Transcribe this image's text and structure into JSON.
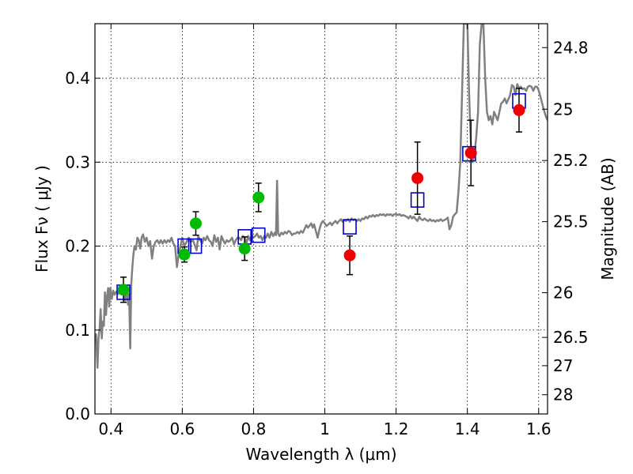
{
  "chart_data": {
    "type": "scatter",
    "xlabel": "Wavelength  λ (μm)",
    "ylabel": "Flux  Fν  ( μJy )",
    "y2label": "Magnitude (AB)",
    "xlim": [
      0.355,
      1.625
    ],
    "ylim": [
      0.0,
      0.465
    ],
    "grid": true,
    "x_ticks": [
      0.4,
      0.6,
      0.8,
      1.0,
      1.2,
      1.4,
      1.6
    ],
    "x_tick_labels": [
      "0.4",
      "0.6",
      "0.8",
      "1",
      "1.2",
      "1.4",
      "1.6"
    ],
    "y_ticks": [
      0.0,
      0.1,
      0.2,
      0.3,
      0.4
    ],
    "y_tick_labels": [
      "0.0",
      "0.1",
      "0.2",
      "0.3",
      "0.4"
    ],
    "y2_ticks": [
      {
        "label": "24.8",
        "flux": 0.4365
      },
      {
        "label": "25",
        "flux": 0.3631
      },
      {
        "label": "25.2",
        "flux": 0.302
      },
      {
        "label": "25.5",
        "flux": 0.2291
      },
      {
        "label": "26",
        "flux": 0.1445
      },
      {
        "label": "26.5",
        "flux": 0.0912
      },
      {
        "label": "27",
        "flux": 0.0575
      },
      {
        "label": "28",
        "flux": 0.0229
      }
    ],
    "colors": {
      "template": "#808080",
      "model": "#0000cc",
      "green": "#00bb00",
      "red": "#ee0000",
      "errorbar": "#000000"
    },
    "template_spectrum": [
      [
        0.355,
        0.09
      ],
      [
        0.358,
        0.095
      ],
      [
        0.362,
        0.055
      ],
      [
        0.365,
        0.09
      ],
      [
        0.368,
        0.102
      ],
      [
        0.371,
        0.125
      ],
      [
        0.374,
        0.09
      ],
      [
        0.377,
        0.11
      ],
      [
        0.38,
        0.105
      ],
      [
        0.383,
        0.145
      ],
      [
        0.386,
        0.118
      ],
      [
        0.389,
        0.14
      ],
      [
        0.392,
        0.15
      ],
      [
        0.395,
        0.128
      ],
      [
        0.398,
        0.15
      ],
      [
        0.402,
        0.137
      ],
      [
        0.406,
        0.147
      ],
      [
        0.41,
        0.142
      ],
      [
        0.415,
        0.146
      ],
      [
        0.42,
        0.143
      ],
      [
        0.425,
        0.148
      ],
      [
        0.43,
        0.145
      ],
      [
        0.435,
        0.148
      ],
      [
        0.44,
        0.135
      ],
      [
        0.444,
        0.15
      ],
      [
        0.448,
        0.13
      ],
      [
        0.451,
        0.143
      ],
      [
        0.454,
        0.078
      ],
      [
        0.457,
        0.155
      ],
      [
        0.46,
        0.175
      ],
      [
        0.463,
        0.19
      ],
      [
        0.466,
        0.2
      ],
      [
        0.47,
        0.196
      ],
      [
        0.474,
        0.21
      ],
      [
        0.478,
        0.207
      ],
      [
        0.482,
        0.197
      ],
      [
        0.486,
        0.21
      ],
      [
        0.49,
        0.214
      ],
      [
        0.495,
        0.205
      ],
      [
        0.5,
        0.21
      ],
      [
        0.505,
        0.2
      ],
      [
        0.51,
        0.206
      ],
      [
        0.515,
        0.185
      ],
      [
        0.52,
        0.2
      ],
      [
        0.525,
        0.205
      ],
      [
        0.53,
        0.207
      ],
      [
        0.535,
        0.203
      ],
      [
        0.54,
        0.207
      ],
      [
        0.545,
        0.203
      ],
      [
        0.55,
        0.207
      ],
      [
        0.555,
        0.204
      ],
      [
        0.56,
        0.207
      ],
      [
        0.565,
        0.205
      ],
      [
        0.57,
        0.21
      ],
      [
        0.575,
        0.203
      ],
      [
        0.58,
        0.2
      ],
      [
        0.585,
        0.175
      ],
      [
        0.59,
        0.19
      ],
      [
        0.595,
        0.2
      ],
      [
        0.6,
        0.21
      ],
      [
        0.606,
        0.2
      ],
      [
        0.612,
        0.205
      ],
      [
        0.618,
        0.21
      ],
      [
        0.624,
        0.205
      ],
      [
        0.63,
        0.207
      ],
      [
        0.636,
        0.2
      ],
      [
        0.64,
        0.195
      ],
      [
        0.645,
        0.212
      ],
      [
        0.65,
        0.207
      ],
      [
        0.656,
        0.203
      ],
      [
        0.66,
        0.21
      ],
      [
        0.665,
        0.207
      ],
      [
        0.67,
        0.212
      ],
      [
        0.675,
        0.207
      ],
      [
        0.68,
        0.205
      ],
      [
        0.685,
        0.2
      ],
      [
        0.69,
        0.213
      ],
      [
        0.695,
        0.205
      ],
      [
        0.7,
        0.21
      ],
      [
        0.705,
        0.196
      ],
      [
        0.71,
        0.212
      ],
      [
        0.715,
        0.207
      ],
      [
        0.72,
        0.203
      ],
      [
        0.725,
        0.207
      ],
      [
        0.73,
        0.205
      ],
      [
        0.735,
        0.207
      ],
      [
        0.74,
        0.21
      ],
      [
        0.745,
        0.202
      ],
      [
        0.75,
        0.207
      ],
      [
        0.755,
        0.21
      ],
      [
        0.76,
        0.21
      ],
      [
        0.765,
        0.207
      ],
      [
        0.77,
        0.212
      ],
      [
        0.775,
        0.21
      ],
      [
        0.78,
        0.203
      ],
      [
        0.785,
        0.212
      ],
      [
        0.79,
        0.207
      ],
      [
        0.795,
        0.213
      ],
      [
        0.8,
        0.21
      ],
      [
        0.805,
        0.212
      ],
      [
        0.81,
        0.215
      ],
      [
        0.815,
        0.21
      ],
      [
        0.82,
        0.212
      ],
      [
        0.825,
        0.207
      ],
      [
        0.83,
        0.212
      ],
      [
        0.835,
        0.21
      ],
      [
        0.84,
        0.215
      ],
      [
        0.845,
        0.21
      ],
      [
        0.85,
        0.217
      ],
      [
        0.855,
        0.212
      ],
      [
        0.86,
        0.216
      ],
      [
        0.863,
        0.213
      ],
      [
        0.866,
        0.278
      ],
      [
        0.869,
        0.215
      ],
      [
        0.873,
        0.212
      ],
      [
        0.878,
        0.216
      ],
      [
        0.883,
        0.214
      ],
      [
        0.888,
        0.217
      ],
      [
        0.893,
        0.215
      ],
      [
        0.898,
        0.218
      ],
      [
        0.903,
        0.217
      ],
      [
        0.908,
        0.213
      ],
      [
        0.913,
        0.215
      ],
      [
        0.918,
        0.215
      ],
      [
        0.923,
        0.217
      ],
      [
        0.928,
        0.215
      ],
      [
        0.933,
        0.218
      ],
      [
        0.938,
        0.216
      ],
      [
        0.943,
        0.22
      ],
      [
        0.948,
        0.225
      ],
      [
        0.953,
        0.222
      ],
      [
        0.958,
        0.225
      ],
      [
        0.962,
        0.227
      ],
      [
        0.966,
        0.222
      ],
      [
        0.97,
        0.226
      ],
      [
        0.975,
        0.218
      ],
      [
        0.98,
        0.21
      ],
      [
        0.985,
        0.22
      ],
      [
        0.99,
        0.227
      ],
      [
        0.995,
        0.23
      ],
      [
        1.0,
        0.227
      ],
      [
        1.005,
        0.224
      ],
      [
        1.01,
        0.226
      ],
      [
        1.015,
        0.228
      ],
      [
        1.02,
        0.225
      ],
      [
        1.025,
        0.228
      ],
      [
        1.03,
        0.23
      ],
      [
        1.035,
        0.227
      ],
      [
        1.04,
        0.23
      ],
      [
        1.045,
        0.232
      ],
      [
        1.05,
        0.229
      ],
      [
        1.055,
        0.231
      ],
      [
        1.06,
        0.23
      ],
      [
        1.065,
        0.232
      ],
      [
        1.07,
        0.229
      ],
      [
        1.075,
        0.233
      ],
      [
        1.08,
        0.231
      ],
      [
        1.085,
        0.232
      ],
      [
        1.09,
        0.23
      ],
      [
        1.095,
        0.232
      ],
      [
        1.1,
        0.23
      ],
      [
        1.105,
        0.233
      ],
      [
        1.11,
        0.232
      ],
      [
        1.115,
        0.235
      ],
      [
        1.12,
        0.233
      ],
      [
        1.125,
        0.236
      ],
      [
        1.13,
        0.235
      ],
      [
        1.135,
        0.237
      ],
      [
        1.14,
        0.235
      ],
      [
        1.145,
        0.237
      ],
      [
        1.15,
        0.236
      ],
      [
        1.155,
        0.238
      ],
      [
        1.16,
        0.237
      ],
      [
        1.165,
        0.238
      ],
      [
        1.17,
        0.236
      ],
      [
        1.175,
        0.238
      ],
      [
        1.18,
        0.237
      ],
      [
        1.185,
        0.238
      ],
      [
        1.19,
        0.236
      ],
      [
        1.195,
        0.238
      ],
      [
        1.2,
        0.238
      ],
      [
        1.205,
        0.237
      ],
      [
        1.21,
        0.238
      ],
      [
        1.215,
        0.236
      ],
      [
        1.22,
        0.237
      ],
      [
        1.225,
        0.236
      ],
      [
        1.23,
        0.235
      ],
      [
        1.235,
        0.233
      ],
      [
        1.24,
        0.236
      ],
      [
        1.245,
        0.233
      ],
      [
        1.25,
        0.235
      ],
      [
        1.255,
        0.232
      ],
      [
        1.26,
        0.23
      ],
      [
        1.265,
        0.235
      ],
      [
        1.27,
        0.232
      ],
      [
        1.275,
        0.231
      ],
      [
        1.28,
        0.233
      ],
      [
        1.285,
        0.231
      ],
      [
        1.29,
        0.23
      ],
      [
        1.295,
        0.232
      ],
      [
        1.3,
        0.23
      ],
      [
        1.305,
        0.231
      ],
      [
        1.31,
        0.229
      ],
      [
        1.315,
        0.231
      ],
      [
        1.32,
        0.23
      ],
      [
        1.325,
        0.232
      ],
      [
        1.33,
        0.23
      ],
      [
        1.335,
        0.231
      ],
      [
        1.34,
        0.232
      ],
      [
        1.345,
        0.234
      ],
      [
        1.35,
        0.22
      ],
      [
        1.355,
        0.225
      ],
      [
        1.36,
        0.235
      ],
      [
        1.365,
        0.238
      ],
      [
        1.37,
        0.24
      ],
      [
        1.375,
        0.265
      ],
      [
        1.38,
        0.3
      ],
      [
        1.385,
        0.38
      ],
      [
        1.39,
        0.465
      ],
      [
        1.395,
        0.465
      ],
      [
        1.4,
        0.465
      ],
      [
        1.405,
        0.38
      ],
      [
        1.41,
        0.32
      ],
      [
        1.415,
        0.3
      ],
      [
        1.42,
        0.31
      ],
      [
        1.425,
        0.33
      ],
      [
        1.43,
        0.36
      ],
      [
        1.435,
        0.44
      ],
      [
        1.44,
        0.465
      ],
      [
        1.445,
        0.465
      ],
      [
        1.45,
        0.4
      ],
      [
        1.455,
        0.36
      ],
      [
        1.46,
        0.35
      ],
      [
        1.465,
        0.355
      ],
      [
        1.47,
        0.345
      ],
      [
        1.475,
        0.36
      ],
      [
        1.48,
        0.355
      ],
      [
        1.485,
        0.35
      ],
      [
        1.49,
        0.36
      ],
      [
        1.495,
        0.37
      ],
      [
        1.5,
        0.372
      ],
      [
        1.505,
        0.376
      ],
      [
        1.51,
        0.37
      ],
      [
        1.515,
        0.375
      ],
      [
        1.52,
        0.38
      ],
      [
        1.525,
        0.392
      ],
      [
        1.53,
        0.39
      ],
      [
        1.535,
        0.38
      ],
      [
        1.54,
        0.393
      ],
      [
        1.545,
        0.388
      ],
      [
        1.55,
        0.39
      ],
      [
        1.555,
        0.387
      ],
      [
        1.56,
        0.388
      ],
      [
        1.565,
        0.385
      ],
      [
        1.57,
        0.39
      ],
      [
        1.575,
        0.391
      ],
      [
        1.58,
        0.39
      ],
      [
        1.585,
        0.385
      ],
      [
        1.59,
        0.39
      ],
      [
        1.595,
        0.39
      ],
      [
        1.6,
        0.386
      ],
      [
        1.605,
        0.378
      ],
      [
        1.61,
        0.37
      ],
      [
        1.615,
        0.362
      ],
      [
        1.62,
        0.355
      ],
      [
        1.625,
        0.35
      ]
    ],
    "model_points": [
      {
        "x": 0.435,
        "y": 0.145
      },
      {
        "x": 0.606,
        "y": 0.2
      },
      {
        "x": 0.636,
        "y": 0.2
      },
      {
        "x": 0.775,
        "y": 0.211
      },
      {
        "x": 0.814,
        "y": 0.213
      },
      {
        "x": 1.07,
        "y": 0.223
      },
      {
        "x": 1.26,
        "y": 0.255
      },
      {
        "x": 1.405,
        "y": 0.31
      },
      {
        "x": 1.545,
        "y": 0.373
      }
    ],
    "green_points": [
      {
        "x": 0.435,
        "y": 0.148,
        "err": 0.015
      },
      {
        "x": 0.606,
        "y": 0.19,
        "err": 0.009
      },
      {
        "x": 0.638,
        "y": 0.227,
        "err": 0.014
      },
      {
        "x": 0.775,
        "y": 0.197,
        "err": 0.014
      },
      {
        "x": 0.814,
        "y": 0.258,
        "err": 0.017
      }
    ],
    "red_points": [
      {
        "x": 1.07,
        "y": 0.189,
        "err": 0.023
      },
      {
        "x": 1.26,
        "y": 0.281,
        "err": 0.043
      },
      {
        "x": 1.41,
        "y": 0.311,
        "err": 0.039
      },
      {
        "x": 1.545,
        "y": 0.362,
        "err": 0.026
      }
    ]
  }
}
